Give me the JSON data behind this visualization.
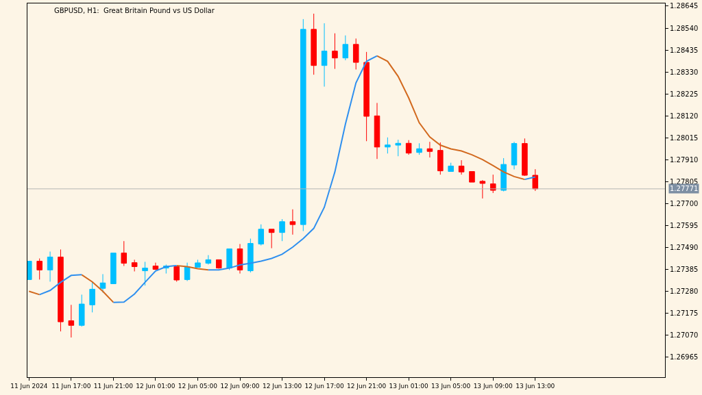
{
  "chart_data": {
    "type": "candlestick",
    "title": "GBPUSD, H1:  Great Britain Pound vs US Dollar",
    "x": [
      "2024-06-11T13:00",
      "2024-06-11T14:00",
      "2024-06-11T15:00",
      "2024-06-11T16:00",
      "2024-06-11T17:00",
      "2024-06-11T18:00",
      "2024-06-11T19:00",
      "2024-06-11T20:00",
      "2024-06-11T21:00",
      "2024-06-11T22:00",
      "2024-06-11T23:00",
      "2024-06-12T00:00",
      "2024-06-12T01:00",
      "2024-06-12T02:00",
      "2024-06-12T03:00",
      "2024-06-12T04:00",
      "2024-06-12T05:00",
      "2024-06-12T06:00",
      "2024-06-12T07:00",
      "2024-06-12T08:00",
      "2024-06-12T09:00",
      "2024-06-12T10:00",
      "2024-06-12T11:00",
      "2024-06-12T12:00",
      "2024-06-12T13:00",
      "2024-06-12T14:00",
      "2024-06-12T15:00",
      "2024-06-12T16:00",
      "2024-06-12T17:00",
      "2024-06-12T18:00",
      "2024-06-12T19:00",
      "2024-06-12T20:00",
      "2024-06-12T21:00",
      "2024-06-12T22:00",
      "2024-06-12T23:00",
      "2024-06-13T00:00",
      "2024-06-13T01:00",
      "2024-06-13T02:00",
      "2024-06-13T03:00",
      "2024-06-13T04:00",
      "2024-06-13T05:00",
      "2024-06-13T06:00",
      "2024-06-13T07:00",
      "2024-06-13T08:00",
      "2024-06-13T09:00",
      "2024-06-13T10:00",
      "2024-06-13T11:00",
      "2024-06-13T12:00",
      "2024-06-13T13:00"
    ],
    "ohlc": [
      [
        1.27337,
        1.27425,
        1.27337,
        1.27425
      ],
      [
        1.27425,
        1.27438,
        1.27337,
        1.27383
      ],
      [
        1.27383,
        1.27471,
        1.27327,
        1.27445
      ],
      [
        1.27445,
        1.27481,
        1.27089,
        1.27135
      ],
      [
        1.2714,
        1.27216,
        1.2706,
        1.27118
      ],
      [
        1.27118,
        1.27265,
        1.27112,
        1.2722
      ],
      [
        1.27216,
        1.27327,
        1.2718,
        1.27291
      ],
      [
        1.27295,
        1.27363,
        1.27275,
        1.27321
      ],
      [
        1.27317,
        1.27464,
        1.27317,
        1.27464
      ],
      [
        1.27464,
        1.27521,
        1.27402,
        1.27415
      ],
      [
        1.27418,
        1.27432,
        1.27376,
        1.27399
      ],
      [
        1.27379,
        1.27422,
        1.27308,
        1.27392
      ],
      [
        1.27402,
        1.27418,
        1.27383,
        1.27386
      ],
      [
        1.27392,
        1.27409,
        1.27366,
        1.27402
      ],
      [
        1.27399,
        1.27399,
        1.27327,
        1.27335
      ],
      [
        1.27337,
        1.27418,
        1.2733,
        1.27399
      ],
      [
        1.27396,
        1.27432,
        1.27396,
        1.27417
      ],
      [
        1.27415,
        1.27454,
        1.27409,
        1.27432
      ],
      [
        1.27432,
        1.27432,
        1.27389,
        1.27392
      ],
      [
        1.27392,
        1.27484,
        1.27383,
        1.27484
      ],
      [
        1.27484,
        1.27507,
        1.27366,
        1.27383
      ],
      [
        1.27379,
        1.27533,
        1.27371,
        1.2751
      ],
      [
        1.27507,
        1.27601,
        1.275,
        1.27578
      ],
      [
        1.27578,
        1.27578,
        1.27487,
        1.27562
      ],
      [
        1.27562,
        1.27626,
        1.27521,
        1.27614
      ],
      [
        1.27614,
        1.27673,
        1.27552,
        1.276
      ],
      [
        1.276,
        1.28583,
        1.27569,
        1.28534
      ],
      [
        1.28534,
        1.28609,
        1.28317,
        1.28361
      ],
      [
        1.28361,
        1.28563,
        1.2826,
        1.2843
      ],
      [
        1.2843,
        1.28515,
        1.28345,
        1.28397
      ],
      [
        1.28397,
        1.28505,
        1.28386,
        1.28462
      ],
      [
        1.28462,
        1.2849,
        1.28342,
        1.28376
      ],
      [
        1.28376,
        1.28426,
        1.27999,
        1.28118
      ],
      [
        1.2812,
        1.28182,
        1.27914,
        1.27971
      ],
      [
        1.27971,
        1.28017,
        1.2794,
        1.27981
      ],
      [
        1.2798,
        1.28006,
        1.27927,
        1.27989
      ],
      [
        1.27989,
        1.28004,
        1.27934,
        1.27942
      ],
      [
        1.27945,
        1.27989,
        1.27934,
        1.27963
      ],
      [
        1.27963,
        1.27996,
        1.27921,
        1.2795
      ],
      [
        1.27955,
        1.27993,
        1.27839,
        1.27857
      ],
      [
        1.27854,
        1.27896,
        1.27854,
        1.2788
      ],
      [
        1.2788,
        1.27908,
        1.27839,
        1.27852
      ],
      [
        1.27854,
        1.27854,
        1.27803,
        1.27803
      ],
      [
        1.27807,
        1.27813,
        1.27725,
        1.27797
      ],
      [
        1.27795,
        1.27839,
        1.27751,
        1.27764
      ],
      [
        1.27764,
        1.27918,
        1.27759,
        1.27888
      ],
      [
        1.27885,
        1.27996,
        1.27864,
        1.27988
      ],
      [
        1.27988,
        1.28012,
        1.27833,
        1.27836
      ],
      [
        1.27836,
        1.27865,
        1.27761,
        1.27771
      ]
    ],
    "colors": [
      "#00bfff",
      "#ff0000",
      "#00bfff",
      "#ff0000",
      "#ff0000",
      "#00bfff",
      "#00bfff",
      "#00bfff",
      "#00bfff",
      "#ff0000",
      "#ff0000",
      "#00bfff",
      "#ff0000",
      "#00bfff",
      "#ff0000",
      "#00bfff",
      "#00bfff",
      "#00bfff",
      "#ff0000",
      "#00bfff",
      "#ff0000",
      "#00bfff",
      "#00bfff",
      "#ff0000",
      "#00bfff",
      "#ff0000",
      "#00bfff",
      "#ff0000",
      "#00bfff",
      "#ff0000",
      "#00bfff",
      "#ff0000",
      "#ff0000",
      "#ff0000",
      "#00bfff",
      "#00bfff",
      "#ff0000",
      "#00bfff",
      "#ff0000",
      "#ff0000",
      "#00bfff",
      "#ff0000",
      "#ff0000",
      "#ff0000",
      "#ff0000",
      "#00bfff",
      "#00bfff",
      "#ff0000",
      "#ff0000"
    ],
    "series": [
      {
        "type": "line",
        "color": "#d2691e",
        "values": [
          1.27281,
          1.27265,
          null,
          null,
          null,
          1.2736,
          1.27326,
          1.27281,
          1.27228,
          null,
          null,
          null,
          null,
          null,
          1.27404,
          1.27399,
          1.27389,
          1.27383,
          null,
          null,
          null,
          null,
          null,
          null,
          null,
          null,
          null,
          null,
          null,
          null,
          null,
          null,
          null,
          1.28407,
          1.28381,
          1.28309,
          1.28206,
          1.28087,
          1.28019,
          1.2798,
          1.27962,
          1.27952,
          1.27934,
          1.27911,
          1.27882,
          1.27852,
          1.2783,
          1.27816,
          null
        ]
      },
      {
        "type": "line",
        "color": "#2e8fef",
        "values": [
          null,
          1.27265,
          1.27285,
          1.27324,
          1.27357,
          1.2736,
          null,
          null,
          1.27228,
          1.27229,
          1.27268,
          1.27324,
          1.27378,
          1.27399,
          1.27404,
          null,
          null,
          1.27383,
          1.27383,
          1.27392,
          1.27407,
          1.27415,
          1.27425,
          1.27438,
          1.27458,
          1.27492,
          1.27533,
          1.27582,
          1.27683,
          1.27852,
          1.28081,
          1.28278,
          1.28381,
          1.28407,
          null,
          null,
          null,
          null,
          null,
          null,
          null,
          null,
          null,
          null,
          null,
          null,
          null,
          1.27816,
          1.27828
        ]
      }
    ],
    "xlim": [
      "2024-06-11T12:51",
      "2024-06-14T01:18"
    ],
    "xticks": [
      {
        "value": "2024-06-11T13:00",
        "label": "11 Jun 2024"
      },
      {
        "value": "2024-06-11T17:00",
        "label": "11 Jun 17:00"
      },
      {
        "value": "2024-06-11T21:00",
        "label": "11 Jun 21:00"
      },
      {
        "value": "2024-06-12T01:00",
        "label": "12 Jun 01:00"
      },
      {
        "value": "2024-06-12T05:00",
        "label": "12 Jun 05:00"
      },
      {
        "value": "2024-06-12T09:00",
        "label": "12 Jun 09:00"
      },
      {
        "value": "2024-06-12T13:00",
        "label": "12 Jun 13:00"
      },
      {
        "value": "2024-06-12T17:00",
        "label": "12 Jun 17:00"
      },
      {
        "value": "2024-06-12T21:00",
        "label": "12 Jun 21:00"
      },
      {
        "value": "2024-06-13T01:00",
        "label": "13 Jun 01:00"
      },
      {
        "value": "2024-06-13T05:00",
        "label": "13 Jun 05:00"
      },
      {
        "value": "2024-06-13T09:00",
        "label": "13 Jun 09:00"
      },
      {
        "value": "2024-06-13T13:00",
        "label": "13 Jun 13:00"
      }
    ],
    "ylim": [
      1.2687,
      1.28658
    ],
    "yticks": [
      1.28645,
      {
        "value": 1.2854,
        "label": "1.28540"
      },
      1.28435,
      {
        "value": 1.2833,
        "label": "1.28330"
      },
      1.28225,
      {
        "value": 1.2812,
        "label": "1.28120"
      },
      1.28015,
      {
        "value": 1.2791,
        "label": "1.27910"
      },
      1.27805,
      {
        "value": 1.277,
        "label": "1.27700"
      },
      1.27595,
      {
        "value": 1.2749,
        "label": "1.27490"
      },
      1.27385,
      {
        "value": 1.2728,
        "label": "1.27280"
      },
      1.27175,
      {
        "value": 1.2707,
        "label": "1.27070"
      },
      1.26965
    ],
    "ref_lines": [
      {
        "axis": "y",
        "value": 1.27771,
        "label": "1.27771",
        "color": "#b4b4b4"
      }
    ],
    "grid": false
  }
}
